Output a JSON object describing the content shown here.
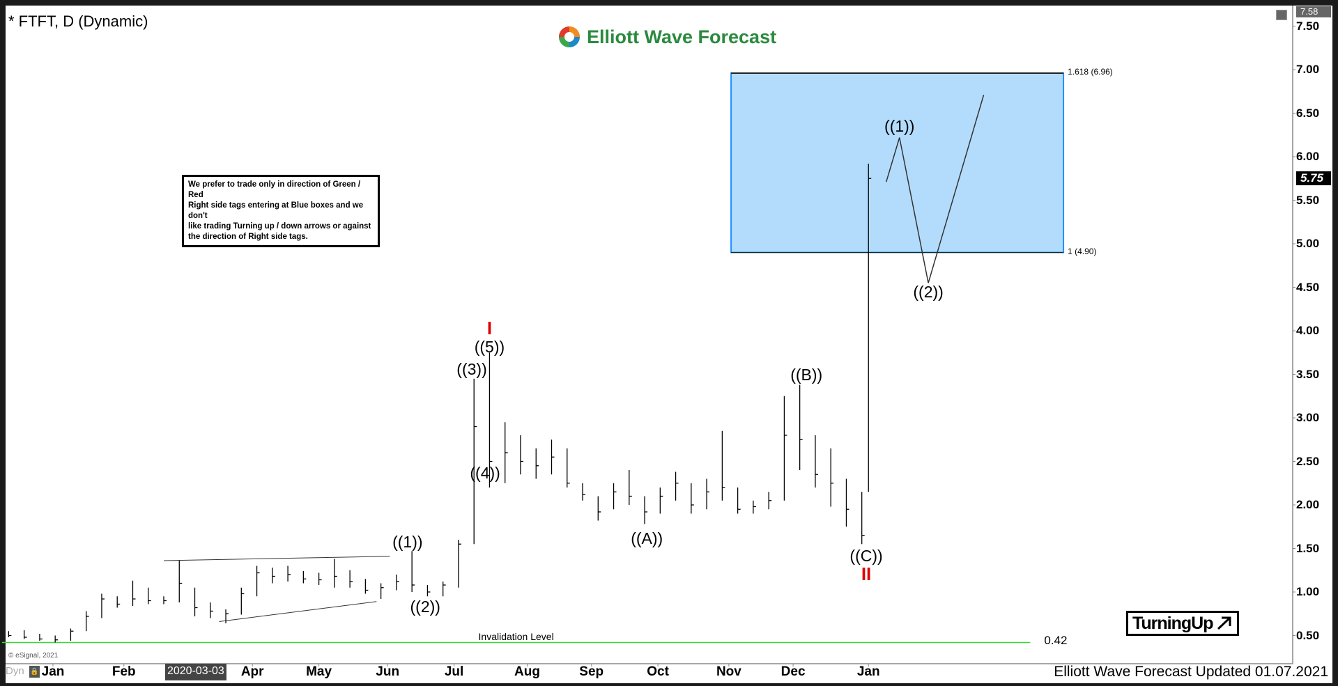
{
  "header": {
    "title": "* FTFT, D (Dynamic)",
    "logo_text": "Elliott Wave Forecast"
  },
  "info_box": [
    "We prefer to trade only in direction of Green / Red",
    "Right side tags entering at Blue boxes and we don't",
    "like trading Turning up / down arrows or against",
    "the direction of Right side tags."
  ],
  "turning_up": {
    "label": "TurningUp",
    "icon": "arrow-up-right-icon"
  },
  "footer": {
    "updated": "Elliott Wave Forecast Updated 01.07.2021",
    "copyright": "© eSignal, 2021",
    "dyn": "Dyn"
  },
  "price_tags": {
    "current": "5.75",
    "max": "7.58"
  },
  "colors": {
    "blue_box": "#b3dcfc",
    "blue_box_border": "#1e90ff",
    "invalidation": "#33dd33",
    "red_label": "#e00000",
    "logo_green": "#2a8a3e"
  },
  "chart_data": {
    "type": "ohlc",
    "symbol": "FTFT",
    "interval": "D",
    "ylim": [
      0.4,
      7.6
    ],
    "y_ticks": [
      "7.50",
      "7.00",
      "6.50",
      "6.00",
      "5.50",
      "5.00",
      "4.50",
      "4.00",
      "3.50",
      "3.00",
      "2.50",
      "2.00",
      "1.50",
      "1.00",
      "0.50"
    ],
    "x_ticks": [
      {
        "label": "Jan",
        "date": "2020-01-02"
      },
      {
        "label": "Feb",
        "date": "2020-02-03"
      },
      {
        "label": "2020-03-03",
        "date": "2020-03-03",
        "highlight": true
      },
      {
        "label": "Apr",
        "date": "2020-04-01"
      },
      {
        "label": "May",
        "date": "2020-05-01"
      },
      {
        "label": "Jun",
        "date": "2020-06-01"
      },
      {
        "label": "Jul",
        "date": "2020-07-01"
      },
      {
        "label": "Aug",
        "date": "2020-08-03"
      },
      {
        "label": "Sep",
        "date": "2020-09-01"
      },
      {
        "label": "Oct",
        "date": "2020-10-01"
      },
      {
        "label": "Nov",
        "date": "2020-11-02"
      },
      {
        "label": "Dec",
        "date": "2020-12-01"
      },
      {
        "label": "Jan",
        "date": "2021-01-04"
      }
    ],
    "bars_columns": [
      "date",
      "high",
      "low",
      "close"
    ],
    "bars": [
      [
        "2019-12-13",
        0.55,
        0.48,
        0.5
      ],
      [
        "2019-12-20",
        0.56,
        0.46,
        0.48
      ],
      [
        "2019-12-27",
        0.52,
        0.44,
        0.46
      ],
      [
        "2020-01-03",
        0.5,
        0.42,
        0.45
      ],
      [
        "2020-01-10",
        0.58,
        0.44,
        0.55
      ],
      [
        "2020-01-17",
        0.78,
        0.55,
        0.72
      ],
      [
        "2020-01-24",
        0.98,
        0.7,
        0.92
      ],
      [
        "2020-01-31",
        0.95,
        0.82,
        0.86
      ],
      [
        "2020-02-07",
        1.13,
        0.84,
        0.92
      ],
      [
        "2020-02-14",
        1.05,
        0.86,
        0.9
      ],
      [
        "2020-02-21",
        0.95,
        0.86,
        0.9
      ],
      [
        "2020-02-28",
        1.36,
        0.88,
        1.1
      ],
      [
        "2020-03-06",
        1.05,
        0.72,
        0.82
      ],
      [
        "2020-03-13",
        0.88,
        0.7,
        0.78
      ],
      [
        "2020-03-20",
        0.8,
        0.64,
        0.75
      ],
      [
        "2020-03-27",
        1.05,
        0.74,
        0.98
      ],
      [
        "2020-04-03",
        1.3,
        0.95,
        1.22
      ],
      [
        "2020-04-10",
        1.28,
        1.1,
        1.18
      ],
      [
        "2020-04-17",
        1.3,
        1.12,
        1.2
      ],
      [
        "2020-04-24",
        1.24,
        1.1,
        1.15
      ],
      [
        "2020-05-01",
        1.22,
        1.08,
        1.14
      ],
      [
        "2020-05-08",
        1.38,
        1.05,
        1.18
      ],
      [
        "2020-05-15",
        1.25,
        1.05,
        1.12
      ],
      [
        "2020-05-22",
        1.15,
        0.98,
        1.02
      ],
      [
        "2020-05-29",
        1.1,
        0.92,
        1.05
      ],
      [
        "2020-06-05",
        1.2,
        1.02,
        1.12
      ],
      [
        "2020-06-12",
        1.47,
        1.0,
        1.08
      ],
      [
        "2020-06-19",
        1.08,
        0.95,
        1.0
      ],
      [
        "2020-06-26",
        1.12,
        0.95,
        1.08
      ],
      [
        "2020-07-03",
        1.6,
        1.05,
        1.55
      ],
      [
        "2020-07-10",
        3.45,
        1.55,
        2.9
      ],
      [
        "2020-07-17",
        3.75,
        2.2,
        2.5
      ],
      [
        "2020-07-24",
        2.95,
        2.25,
        2.6
      ],
      [
        "2020-07-31",
        2.8,
        2.35,
        2.5
      ],
      [
        "2020-08-07",
        2.65,
        2.3,
        2.45
      ],
      [
        "2020-08-14",
        2.75,
        2.35,
        2.55
      ],
      [
        "2020-08-21",
        2.65,
        2.2,
        2.25
      ],
      [
        "2020-08-28",
        2.25,
        2.05,
        2.12
      ],
      [
        "2020-09-04",
        2.1,
        1.82,
        1.92
      ],
      [
        "2020-09-11",
        2.25,
        1.95,
        2.15
      ],
      [
        "2020-09-18",
        2.4,
        2.0,
        2.1
      ],
      [
        "2020-09-25",
        2.1,
        1.78,
        1.92
      ],
      [
        "2020-10-02",
        2.2,
        1.9,
        2.1
      ],
      [
        "2020-10-09",
        2.38,
        2.05,
        2.25
      ],
      [
        "2020-10-16",
        2.25,
        1.9,
        2.0
      ],
      [
        "2020-10-23",
        2.3,
        1.95,
        2.15
      ],
      [
        "2020-10-30",
        2.85,
        2.05,
        2.2
      ],
      [
        "2020-11-06",
        2.2,
        1.9,
        1.95
      ],
      [
        "2020-11-13",
        2.05,
        1.9,
        1.98
      ],
      [
        "2020-11-20",
        2.15,
        1.95,
        2.05
      ],
      [
        "2020-11-27",
        3.25,
        2.05,
        2.8
      ],
      [
        "2020-12-04",
        3.38,
        2.4,
        2.75
      ],
      [
        "2020-12-11",
        2.8,
        2.2,
        2.35
      ],
      [
        "2020-12-18",
        2.65,
        1.98,
        2.25
      ],
      [
        "2020-12-25",
        2.3,
        1.75,
        1.95
      ],
      [
        "2021-01-01",
        2.15,
        1.55,
        1.65
      ],
      [
        "2021-01-04",
        5.92,
        2.15,
        5.75
      ]
    ],
    "blue_box": {
      "from": "2020-11-03",
      "to": "2021-04-02",
      "top": 6.96,
      "bottom": 4.9
    },
    "fib_levels": [
      {
        "label": "1.618 (6.96)",
        "price": 6.96
      },
      {
        "label": "1 (4.90)",
        "price": 4.9
      }
    ],
    "invalidation": {
      "label": "Invalidation Level",
      "price": 0.42,
      "value_label": "0.42",
      "from": "2019-12-10",
      "to": "2021-03-18"
    },
    "triangle_lines": [
      {
        "from": [
          "2020-02-21",
          1.36
        ],
        "to": [
          "2020-06-02",
          1.41
        ]
      },
      {
        "from": [
          "2020-03-17",
          0.66
        ],
        "to": [
          "2020-05-27",
          0.89
        ]
      }
    ],
    "projection_path": [
      [
        "2021-01-12",
        5.71
      ],
      [
        "2021-01-18",
        6.22
      ],
      [
        "2021-01-31",
        4.55
      ],
      [
        "2021-02-25",
        6.71
      ]
    ],
    "wave_labels": [
      {
        "text": "((1))",
        "date": "2020-06-10",
        "price": 1.58
      },
      {
        "text": "((2))",
        "date": "2020-06-18",
        "price": 0.83
      },
      {
        "text": "((3))",
        "date": "2020-07-09",
        "price": 3.56
      },
      {
        "text": "((4))",
        "date": "2020-07-15",
        "price": 2.37
      },
      {
        "text": "((5))",
        "date": "2020-07-17",
        "price": 3.82
      },
      {
        "text": "I",
        "date": "2020-07-17",
        "price": 4.03,
        "color": "red"
      },
      {
        "text": "((A))",
        "date": "2020-09-26",
        "price": 1.62
      },
      {
        "text": "((B))",
        "date": "2020-12-07",
        "price": 3.5
      },
      {
        "text": "((C))",
        "date": "2021-01-03",
        "price": 1.42
      },
      {
        "text": "II",
        "date": "2021-01-03",
        "price": 1.25,
        "color": "red"
      },
      {
        "text": "((1))",
        "date": "2021-01-18",
        "price": 6.35
      },
      {
        "text": "((2))",
        "date": "2021-01-31",
        "price": 4.45
      }
    ]
  }
}
